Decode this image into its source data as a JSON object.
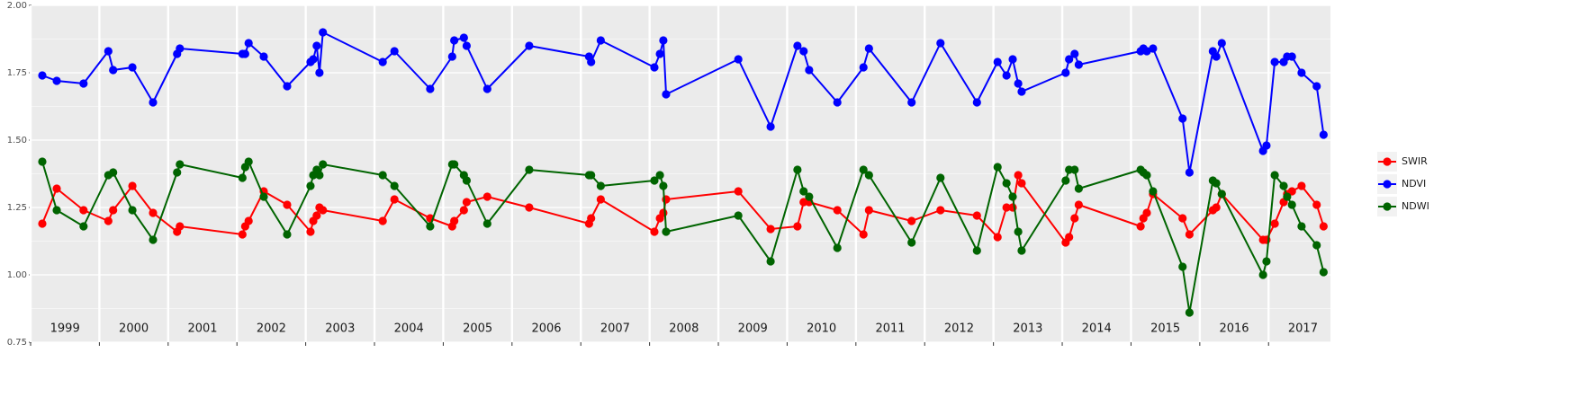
{
  "chart_data": {
    "type": "line",
    "x": [
      1999.17,
      1999.38,
      1999.77,
      2000.13,
      2000.2,
      2000.48,
      2000.78,
      2001.13,
      2001.17,
      2002.08,
      2002.12,
      2002.17,
      2002.39,
      2002.73,
      2003.07,
      2003.11,
      2003.16,
      2003.2,
      2003.25,
      2004.12,
      2004.29,
      2004.81,
      2005.13,
      2005.16,
      2005.3,
      2005.34,
      2005.64,
      2006.25,
      2007.12,
      2007.15,
      2007.29,
      2008.07,
      2008.15,
      2008.2,
      2008.24,
      2009.29,
      2009.76,
      2010.15,
      2010.24,
      2010.32,
      2010.73,
      2011.11,
      2011.19,
      2011.81,
      2012.23,
      2012.76,
      2013.06,
      2013.19,
      2013.28,
      2013.36,
      2013.41,
      2014.05,
      2014.1,
      2014.18,
      2014.24,
      2015.14,
      2015.18,
      2015.23,
      2015.32,
      2015.75,
      2015.85,
      2016.19,
      2016.24,
      2016.32,
      2016.92,
      2016.97,
      2017.09,
      2017.22,
      2017.27,
      2017.34,
      2017.48,
      2017.7,
      2017.8
    ],
    "series": [
      {
        "name": "SWIR",
        "color": "#ff0000",
        "values": [
          1.19,
          1.32,
          1.24,
          1.2,
          1.24,
          1.33,
          1.23,
          1.16,
          1.18,
          1.15,
          1.18,
          1.2,
          1.31,
          1.26,
          1.16,
          1.2,
          1.22,
          1.25,
          1.24,
          1.2,
          1.28,
          1.21,
          1.18,
          1.2,
          1.24,
          1.27,
          1.29,
          1.25,
          1.19,
          1.21,
          1.28,
          1.16,
          1.21,
          1.23,
          1.28,
          1.31,
          1.17,
          1.18,
          1.27,
          1.27,
          1.24,
          1.15,
          1.24,
          1.2,
          1.24,
          1.22,
          1.14,
          1.25,
          1.25,
          1.37,
          1.34,
          1.12,
          1.14,
          1.21,
          1.26,
          1.18,
          1.21,
          1.23,
          1.3,
          1.21,
          1.15,
          1.24,
          1.25,
          1.3,
          1.13,
          1.13,
          1.19,
          1.27,
          1.3,
          1.31,
          1.33,
          1.26,
          1.18
        ]
      },
      {
        "name": "NDVI",
        "color": "#0000ff",
        "values": [
          1.74,
          1.72,
          1.71,
          1.83,
          1.76,
          1.77,
          1.64,
          1.82,
          1.84,
          1.82,
          1.82,
          1.86,
          1.81,
          1.7,
          1.79,
          1.8,
          1.85,
          1.75,
          1.9,
          1.79,
          1.83,
          1.69,
          1.81,
          1.87,
          1.88,
          1.85,
          1.69,
          1.85,
          1.81,
          1.79,
          1.87,
          1.77,
          1.82,
          1.87,
          1.67,
          1.8,
          1.55,
          1.85,
          1.83,
          1.76,
          1.64,
          1.77,
          1.84,
          1.64,
          1.86,
          1.64,
          1.79,
          1.74,
          1.8,
          1.71,
          1.68,
          1.75,
          1.8,
          1.82,
          1.78,
          1.83,
          1.84,
          1.83,
          1.84,
          1.58,
          1.38,
          1.83,
          1.81,
          1.86,
          1.46,
          1.48,
          1.79,
          1.79,
          1.81,
          1.81,
          1.75,
          1.7,
          1.52
        ]
      },
      {
        "name": "NDWI",
        "color": "#006400",
        "values": [
          1.42,
          1.24,
          1.18,
          1.37,
          1.38,
          1.24,
          1.13,
          1.38,
          1.41,
          1.36,
          1.4,
          1.42,
          1.29,
          1.15,
          1.33,
          1.37,
          1.39,
          1.37,
          1.41,
          1.37,
          1.33,
          1.18,
          1.41,
          1.41,
          1.37,
          1.35,
          1.19,
          1.39,
          1.37,
          1.37,
          1.33,
          1.35,
          1.37,
          1.33,
          1.16,
          1.22,
          1.05,
          1.39,
          1.31,
          1.29,
          1.1,
          1.39,
          1.37,
          1.12,
          1.36,
          1.09,
          1.4,
          1.34,
          1.29,
          1.16,
          1.09,
          1.35,
          1.39,
          1.39,
          1.32,
          1.39,
          1.38,
          1.37,
          1.31,
          1.03,
          0.86,
          1.35,
          1.34,
          1.3,
          1.0,
          1.05,
          1.37,
          1.33,
          1.29,
          1.26,
          1.18,
          1.11,
          1.01
        ]
      }
    ],
    "xlim": [
      1999,
      2017.9
    ],
    "xticks": [
      1999,
      2000,
      2001,
      2002,
      2003,
      2004,
      2005,
      2006,
      2007,
      2008,
      2009,
      2010,
      2011,
      2012,
      2013,
      2014,
      2015,
      2016,
      2017
    ],
    "ylim": [
      0.75,
      2.0
    ],
    "yticks": [
      0.75,
      {
        "value": 1.0,
        "label": "1.00"
      },
      1.25,
      {
        "value": 1.5,
        "label": "1.50"
      },
      1.75,
      {
        "value": 2.0,
        "label": "2.00"
      }
    ],
    "grid": true,
    "legend": "right"
  }
}
